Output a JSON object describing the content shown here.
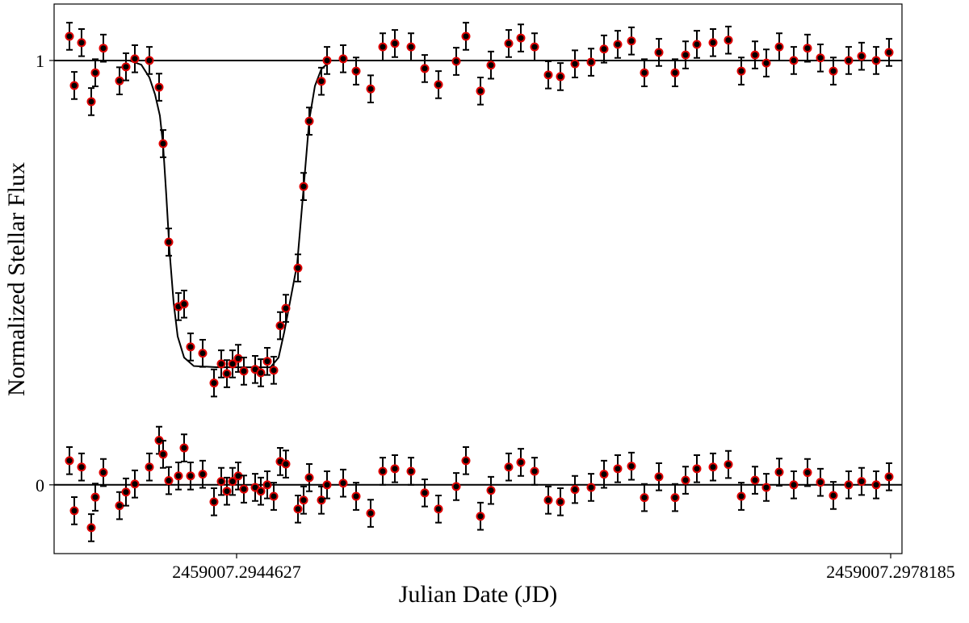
{
  "chart_data": {
    "type": "scatter",
    "xlabel": "Julian Date (JD)",
    "ylabel": "Normalized Stellar Flux",
    "xlim": [
      2459007.2935264,
      2459007.2978765
    ],
    "ylim": [
      -0.162,
      1.133
    ],
    "xticks": [
      2459007.2944627,
      2459007.2978185
    ],
    "yticks": [
      0,
      1
    ],
    "hlines": [
      1,
      0
    ],
    "x": [
      2459007.2936051,
      2459007.29363,
      2459007.2936672,
      2459007.293717,
      2459007.2937377,
      2459007.2937791,
      2459007.293862,
      2459007.2938951,
      2459007.2939407,
      2459007.2940153,
      2459007.294065,
      2459007.2940857,
      2459007.2941147,
      2459007.2941644,
      2459007.2941934,
      2459007.2942265,
      2459007.2942887,
      2459007.2943467,
      2459007.294384,
      2459007.294413,
      2459007.294442,
      2459007.294471,
      2459007.2945,
      2459007.294558,
      2459007.294587,
      2459007.2946201,
      2459007.2946533,
      2459007.2946864,
      2459007.2947154,
      2459007.2947776,
      2459007.2948066,
      2459007.2948356,
      2459007.2948977,
      2459007.2949267,
      2459007.2950096,
      2459007.2950759,
      2459007.2951504,
      2459007.2952126,
      2459007.2952747,
      2459007.2953576,
      2459007.295428,
      2459007.2954985,
      2459007.2955896,
      2459007.2956393,
      2459007.2957139,
      2459007.2957677,
      2459007.2958589,
      2459007.295921,
      2459007.2959915,
      2459007.2960619,
      2459007.296124,
      2459007.2961986,
      2459007.2962815,
      2459007.2963478,
      2459007.2964182,
      2459007.2964886,
      2459007.2965549,
      2459007.2966295,
      2459007.2967123,
      2459007.2967662,
      2459007.2968242,
      2459007.2969071,
      2459007.2969858,
      2459007.2970521,
      2459007.2971225,
      2459007.2971805,
      2459007.2972468,
      2459007.2973214,
      2459007.2973918,
      2459007.2974581,
      2459007.2975244,
      2459007.2976031,
      2459007.2976694,
      2459007.297744,
      2459007.2978102
    ],
    "series": [
      {
        "color": "#e00000",
        "error": 0.032,
        "values": [
          1.057,
          0.941,
          1.042,
          0.903,
          0.971,
          1.029,
          0.952,
          0.985,
          1.004,
          1.0,
          0.937,
          0.804,
          0.572,
          0.42,
          0.426,
          0.325,
          0.31,
          0.24,
          0.285,
          0.262,
          0.285,
          0.298,
          0.268,
          0.272,
          0.264,
          0.291,
          0.27,
          0.375,
          0.416,
          0.511,
          0.703,
          0.857,
          0.951,
          1.0,
          1.004,
          0.975,
          0.933,
          1.032,
          1.04,
          1.032,
          0.981,
          0.943,
          0.998,
          1.057,
          0.928,
          0.989,
          1.04,
          1.053,
          1.032,
          0.966,
          0.962,
          0.992,
          0.996,
          1.027,
          1.038,
          1.046,
          0.971,
          1.019,
          0.971,
          1.013,
          1.038,
          1.042,
          1.048,
          0.975,
          1.013,
          0.994,
          1.032,
          1.0,
          1.029,
          1.006,
          0.975,
          1.0,
          1.01,
          1.0,
          1.019
        ]
      },
      {
        "color": "#e00000",
        "error": 0.032,
        "values": [
          0.057,
          -0.061,
          0.042,
          -0.101,
          -0.029,
          0.029,
          -0.049,
          -0.017,
          0.002,
          0.042,
          0.105,
          0.072,
          0.01,
          0.021,
          0.087,
          0.021,
          0.025,
          -0.04,
          0.008,
          -0.015,
          0.008,
          0.021,
          -0.01,
          -0.006,
          -0.015,
          0.0,
          -0.027,
          0.055,
          0.049,
          -0.057,
          -0.036,
          0.017,
          -0.036,
          0.0,
          0.004,
          -0.027,
          -0.067,
          0.032,
          0.038,
          0.032,
          -0.019,
          -0.057,
          -0.004,
          0.057,
          -0.074,
          -0.013,
          0.042,
          0.053,
          0.032,
          -0.036,
          -0.04,
          -0.011,
          -0.006,
          0.025,
          0.038,
          0.044,
          -0.03,
          0.019,
          -0.03,
          0.011,
          0.038,
          0.042,
          0.048,
          -0.027,
          0.011,
          -0.006,
          0.03,
          0.0,
          0.029,
          0.006,
          -0.025,
          0.0,
          0.008,
          0.0,
          0.019
        ]
      }
    ],
    "model": {
      "type": "line",
      "color": "#000000",
      "x": [
        2459007.2935264,
        2459007.2939117,
        2459007.2939738,
        2459007.2940153,
        2459007.2940443,
        2459007.2940691,
        2459007.2940857,
        2459007.2941023,
        2459007.2941188,
        2459007.2941395,
        2459007.2941603,
        2459007.2941934,
        2459007.2942431,
        2459007.2943674,
        2459007.2946367,
        2459007.2946781,
        2459007.2947071,
        2459007.2947403,
        2459007.2947734,
        2459007.2948066,
        2459007.2948356,
        2459007.2948646,
        2459007.2948977,
        2459007.2949474,
        2459007.2978765
      ],
      "values": [
        1.0,
        1.0,
        0.99,
        0.96,
        0.92,
        0.87,
        0.8,
        0.68,
        0.55,
        0.43,
        0.35,
        0.3,
        0.28,
        0.277,
        0.277,
        0.3,
        0.36,
        0.44,
        0.52,
        0.7,
        0.86,
        0.94,
        0.98,
        1.0,
        1.0
      ]
    }
  }
}
